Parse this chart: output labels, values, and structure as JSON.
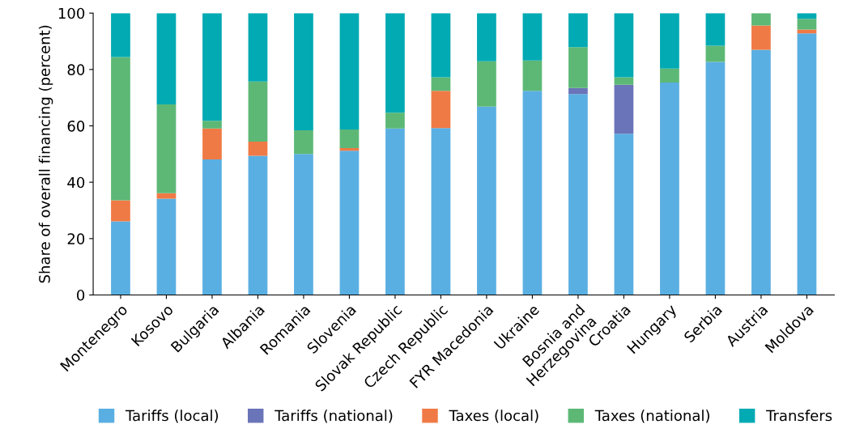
{
  "chart_data": {
    "type": "bar",
    "stacked": true,
    "ylabel": "Share of overall financing (percent)",
    "categories": [
      "Montenegro",
      "Kosovo",
      "Bulgaria",
      "Albania",
      "Romania",
      "Slovenia",
      "Slovak Republic",
      "Czech Republic",
      "FYR Macedonia",
      "Ukraine",
      "Bosnia and\nHerzegovina",
      "Croatia",
      "Hungary",
      "Serbia",
      "Austria",
      "Moldova"
    ],
    "series": [
      {
        "name": "Tariffs (local)",
        "color": "#5aafe2",
        "values": [
          26.1,
          34.2,
          48.1,
          49.4,
          50.0,
          51.2,
          59.1,
          59.2,
          66.8,
          72.4,
          71.3,
          57.2,
          75.4,
          82.7,
          87.0,
          92.8
        ]
      },
      {
        "name": "Tariffs (national)",
        "color": "#6a74b8",
        "values": [
          0,
          0,
          0,
          0,
          0,
          0,
          0,
          0,
          0,
          0,
          2.1,
          17.4,
          0,
          0,
          0,
          0
        ]
      },
      {
        "name": "Taxes (local)",
        "color": "#f07a45",
        "values": [
          7.5,
          1.9,
          11.0,
          5.0,
          0,
          0.9,
          0,
          13.2,
          0,
          0,
          0,
          0,
          0,
          0,
          8.6,
          1.4
        ]
      },
      {
        "name": "Taxes (national)",
        "color": "#5db876",
        "values": [
          50.8,
          31.5,
          2.7,
          21.3,
          8.4,
          6.6,
          5.6,
          4.8,
          16.1,
          10.8,
          14.5,
          2.6,
          4.9,
          5.7,
          4.4,
          3.8
        ]
      },
      {
        "name": "Transfers",
        "color": "#02aab3",
        "values": [
          15.6,
          32.4,
          38.2,
          24.3,
          41.6,
          41.3,
          35.3,
          22.8,
          17.1,
          16.8,
          12.1,
          22.8,
          19.7,
          11.6,
          0,
          2.0
        ]
      }
    ],
    "ylim": [
      0,
      100
    ],
    "yticks": [
      0,
      20,
      40,
      60,
      80,
      100
    ],
    "grid": false,
    "legend": "bottom"
  }
}
